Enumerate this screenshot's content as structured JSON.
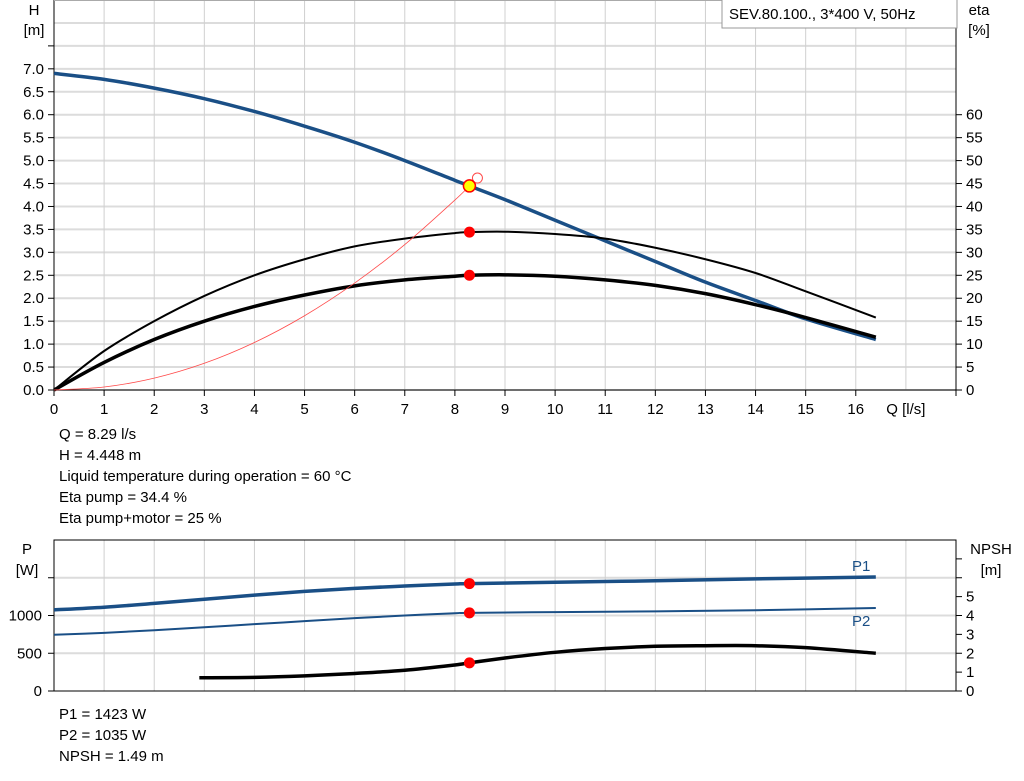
{
  "chart_data": [
    {
      "type": "line",
      "legend_box": "SEV.80.100., 3*400 V, 50Hz",
      "xlabel": "Q [l/s]",
      "ylabel": "H\n[m]",
      "ylabel_lines": [
        "H",
        "[m]"
      ],
      "y2label_lines": [
        "eta",
        "[%]"
      ],
      "xlim": [
        0,
        18
      ],
      "ylim": [
        0,
        8.5
      ],
      "y2lim": [
        0,
        85
      ],
      "grid": true,
      "x_ticks": [
        "0",
        "1",
        "2",
        "3",
        "4",
        "5",
        "6",
        "7",
        "8",
        "9",
        "10",
        "11",
        "12",
        "13",
        "14",
        "15",
        "16"
      ],
      "y_ticks": [
        "0.0",
        "0.5",
        "1.0",
        "1.5",
        "2.0",
        "2.5",
        "3.0",
        "3.5",
        "4.0",
        "4.5",
        "5.0",
        "5.5",
        "6.0",
        "6.5",
        "7.0"
      ],
      "y2_ticks": [
        "0",
        "5",
        "10",
        "15",
        "20",
        "25",
        "30",
        "35",
        "40",
        "45",
        "50",
        "55",
        "60"
      ],
      "colors": {
        "head": "#1a4f86",
        "eta": "#000000",
        "system": "#ff4a4a",
        "point": "#ff0000",
        "duty": "#ffff00"
      },
      "series": [
        {
          "key": "head",
          "axis": "left",
          "x": [
            0,
            1,
            2,
            3,
            4,
            5,
            6,
            7,
            8,
            8.29,
            9,
            10,
            11,
            12,
            13,
            14,
            15,
            16.4
          ],
          "y": [
            6.9,
            6.77,
            6.58,
            6.35,
            6.07,
            5.75,
            5.4,
            5.0,
            4.57,
            4.448,
            4.15,
            3.7,
            3.25,
            2.8,
            2.35,
            1.95,
            1.55,
            1.1
          ]
        },
        {
          "key": "eta_pump",
          "axis": "right",
          "x": [
            0,
            1,
            2,
            3,
            4,
            5,
            6,
            7,
            8,
            8.29,
            9,
            10,
            11,
            12,
            13,
            14,
            15,
            16.4
          ],
          "y": [
            0,
            8.5,
            15,
            20.5,
            25,
            28.5,
            31.3,
            33,
            34.2,
            34.4,
            34.5,
            34,
            33,
            31,
            28.5,
            25.5,
            21.5,
            15.8
          ]
        },
        {
          "key": "eta_pump_motor",
          "axis": "right",
          "x": [
            0,
            1,
            2,
            3,
            4,
            5,
            6,
            7,
            8,
            8.29,
            9,
            10,
            11,
            12,
            13,
            14,
            15,
            16.4
          ],
          "y": [
            0,
            6,
            11,
            15,
            18.2,
            20.7,
            22.7,
            24,
            24.8,
            25,
            25.1,
            24.8,
            24,
            22.8,
            21,
            18.6,
            15.8,
            11.5
          ]
        },
        {
          "key": "system_curve",
          "axis": "left",
          "x": [
            0,
            1,
            2,
            3,
            4,
            5,
            6,
            7,
            8,
            8.29,
            8.45
          ],
          "y": [
            0,
            0.065,
            0.259,
            0.582,
            1.035,
            1.618,
            2.33,
            3.17,
            4.14,
            4.448,
            4.62
          ]
        }
      ],
      "duty_point": {
        "Q": 8.29,
        "H": 4.448,
        "eta_pump": 34.4,
        "eta_pump_motor": 25
      }
    },
    {
      "type": "line",
      "ylabel_lines": [
        "P",
        "[W]"
      ],
      "y2label_lines": [
        "NPSH",
        "[m]"
      ],
      "xlim": [
        0,
        18
      ],
      "ylim": [
        0,
        2000
      ],
      "y2lim": [
        0,
        8
      ],
      "grid": true,
      "y_ticks": [
        "0",
        "500",
        "1000"
      ],
      "y2_ticks": [
        "0",
        "1",
        "2",
        "3",
        "4",
        "5"
      ],
      "series": [
        {
          "name": "P1",
          "axis": "left",
          "x": [
            0,
            1,
            2,
            3,
            4,
            5,
            6,
            7,
            8,
            8.29,
            10,
            12,
            14,
            16.4
          ],
          "y": [
            1075,
            1110,
            1160,
            1215,
            1270,
            1320,
            1360,
            1390,
            1418,
            1423,
            1440,
            1460,
            1485,
            1510
          ]
        },
        {
          "name": "P2",
          "axis": "left",
          "x": [
            0,
            1,
            2,
            3,
            4,
            5,
            6,
            7,
            8,
            8.29,
            10,
            12,
            14,
            16.4
          ],
          "y": [
            745,
            770,
            805,
            845,
            885,
            925,
            965,
            1000,
            1030,
            1035,
            1045,
            1055,
            1070,
            1100
          ]
        },
        {
          "key": "npsh",
          "axis": "right",
          "x": [
            2.9,
            4,
            5,
            6,
            7,
            8,
            8.29,
            9,
            10,
            11,
            12,
            13,
            14,
            15,
            16.4
          ],
          "y": [
            0.7,
            0.72,
            0.8,
            0.93,
            1.1,
            1.38,
            1.49,
            1.75,
            2.05,
            2.25,
            2.37,
            2.4,
            2.4,
            2.3,
            2.0
          ]
        }
      ],
      "duty_point": {
        "Q": 8.29,
        "P1": 1423,
        "P2": 1035,
        "NPSH": 1.49
      }
    }
  ],
  "info_top": [
    "Q = 8.29 l/s",
    "H = 4.448 m",
    "Liquid temperature during operation = 60 °C",
    "Eta pump = 34.4 %",
    "Eta pump+motor = 25 %"
  ],
  "info_bottom": [
    "P1 = 1423 W",
    "P2 = 1035 W",
    "NPSH = 1.49 m"
  ]
}
